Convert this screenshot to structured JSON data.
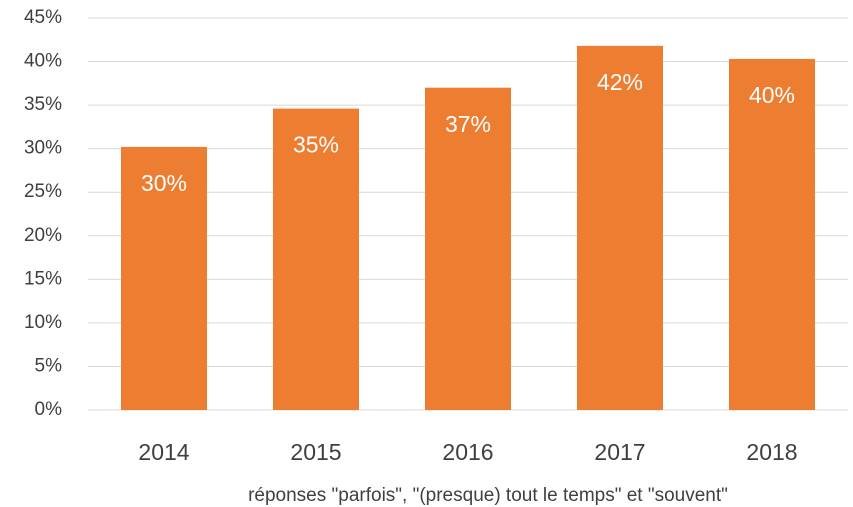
{
  "chart_data": {
    "type": "bar",
    "x_label": "réponses \"parfois\", \"(presque) tout le temps\" et \"souvent\"",
    "categories": [
      "2014",
      "2015",
      "2016",
      "2017",
      "2018"
    ],
    "values": [
      30.2,
      34.6,
      37.0,
      41.8,
      40.3
    ],
    "value_labels": [
      "30%",
      "35%",
      "37%",
      "42%",
      "40%"
    ],
    "color": "#ed7d31",
    "ylim": [
      0,
      45
    ],
    "yticks": [
      {
        "value": 0,
        "label": "0%"
      },
      {
        "value": 5,
        "label": "5%"
      },
      {
        "value": 10,
        "label": "10%"
      },
      {
        "value": 15,
        "label": "15%"
      },
      {
        "value": 20,
        "label": "20%"
      },
      {
        "value": 25,
        "label": "25%"
      },
      {
        "value": 30,
        "label": "30%"
      },
      {
        "value": 35,
        "label": "35%"
      },
      {
        "value": 40,
        "label": "40%"
      },
      {
        "value": 45,
        "label": "45%"
      }
    ],
    "grid": true
  }
}
